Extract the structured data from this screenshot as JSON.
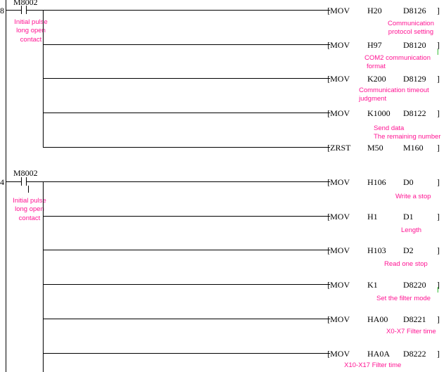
{
  "rungs": [
    {
      "step": "8",
      "contact": "M8002",
      "contact_note": [
        "Initial pulse",
        "long open",
        "contact"
      ],
      "instructions": [
        {
          "op": "[MOV",
          "src": "H20",
          "dst": "D8126",
          "note": [
            "Communication",
            "protocol setting"
          ]
        },
        {
          "op": "[MOV",
          "src": "H97",
          "dst": "D8120",
          "note": [
            "COM2 communication",
            "format"
          ]
        },
        {
          "op": "[MOV",
          "src": "K200",
          "dst": "D8129",
          "note": [
            "Communication timeout",
            "judgment"
          ]
        },
        {
          "op": "[MOV",
          "src": "K1000",
          "dst": "D8122",
          "note": [
            "Send data",
            "The remaining number"
          ]
        },
        {
          "op": "[ZRST",
          "src": "M50",
          "dst": "M160",
          "note": []
        }
      ]
    },
    {
      "step": "4",
      "contact": "M8002",
      "contact_note": [
        "Initial pulse",
        "long open",
        "contact"
      ],
      "instructions": [
        {
          "op": "[MOV",
          "src": "H106",
          "dst": "D0",
          "note": [
            "Write a stop"
          ]
        },
        {
          "op": "[MOV",
          "src": "H1",
          "dst": "D1",
          "note": [
            "Length"
          ]
        },
        {
          "op": "[MOV",
          "src": "H103",
          "dst": "D2",
          "note": [
            "Read one stop"
          ]
        },
        {
          "op": "[MOV",
          "src": "K1",
          "dst": "D8220",
          "note": [
            "Set the filter mode"
          ]
        },
        {
          "op": "[MOV",
          "src": "HA00",
          "dst": "D8221",
          "note": [
            "X0-X7 Filter time"
          ]
        },
        {
          "op": "[MOV",
          "src": "HA0A",
          "dst": "D8222",
          "note": [
            "X10-X17 Filter time"
          ]
        }
      ]
    }
  ],
  "close_bracket": "]",
  "colors": {
    "wire": "#000000",
    "note": "#ff1493",
    "marker": "#39c039"
  }
}
